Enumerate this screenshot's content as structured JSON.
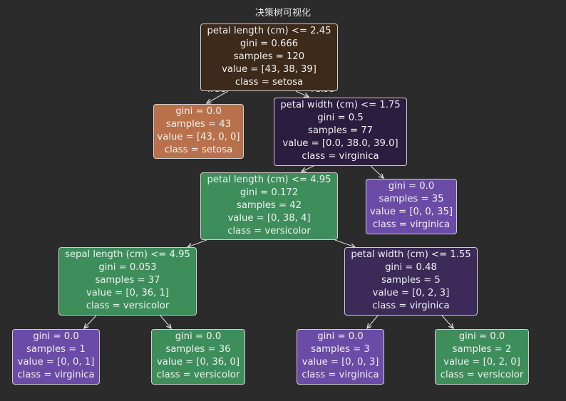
{
  "title": "决策树可视化",
  "edge_labels": {
    "left": "True",
    "right": "False"
  },
  "colors": {
    "setosa_root": "#3d2a1a",
    "setosa_leaf": "#b8714a",
    "virginica_dark": "#2b1d3f",
    "virginica_mid": "#3c2a59",
    "virginica_leaf": "#6a4ba6",
    "versicolor": "#3e8e5c"
  },
  "nodes": [
    {
      "id": "n0",
      "lines": [
        "petal length (cm) <= 2.45",
        "gini = 0.666",
        "samples = 120",
        "value = [43, 38, 39]",
        "class = setosa"
      ]
    },
    {
      "id": "n1",
      "lines": [
        "gini = 0.0",
        "samples = 43",
        "value = [43, 0, 0]",
        "class = setosa"
      ]
    },
    {
      "id": "n2",
      "lines": [
        "petal width (cm) <= 1.75",
        "gini = 0.5",
        "samples = 77",
        "value = [0.0, 38.0, 39.0]",
        "class = virginica"
      ]
    },
    {
      "id": "n3",
      "lines": [
        "petal length (cm) <= 4.95",
        "gini = 0.172",
        "samples = 42",
        "value = [0, 38, 4]",
        "class = versicolor"
      ]
    },
    {
      "id": "n4",
      "lines": [
        "gini = 0.0",
        "samples = 35",
        "value = [0, 0, 35]",
        "class = virginica"
      ]
    },
    {
      "id": "n5",
      "lines": [
        "sepal length (cm) <= 4.95",
        "gini = 0.053",
        "samples = 37",
        "value = [0, 36, 1]",
        "class = versicolor"
      ]
    },
    {
      "id": "n6",
      "lines": [
        "petal width (cm) <= 1.55",
        "gini = 0.48",
        "samples = 5",
        "value = [0, 2, 3]",
        "class = virginica"
      ]
    },
    {
      "id": "n7",
      "lines": [
        "gini = 0.0",
        "samples = 1",
        "value = [0, 0, 1]",
        "class = virginica"
      ]
    },
    {
      "id": "n8",
      "lines": [
        "gini = 0.0",
        "samples = 36",
        "value = [0, 36, 0]",
        "class = versicolor"
      ]
    },
    {
      "id": "n9",
      "lines": [
        "gini = 0.0",
        "samples = 3",
        "value = [0, 0, 3]",
        "class = virginica"
      ]
    },
    {
      "id": "n10",
      "lines": [
        "gini = 0.0",
        "samples = 2",
        "value = [0, 2, 0]",
        "class = versicolor"
      ]
    }
  ]
}
